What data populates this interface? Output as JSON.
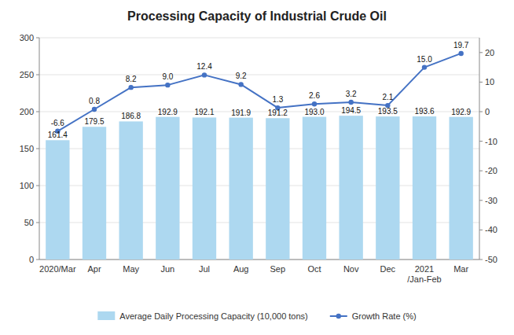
{
  "chart_data": {
    "type": "bar",
    "title": "Processing Capacity of Industrial Crude Oil",
    "categories": [
      "2020/Mar",
      "Apr",
      "May",
      "Jun",
      "Jul",
      "Aug",
      "Sep",
      "Oct",
      "Nov",
      "Dec",
      "2021\n/Jan-Feb",
      "Mar"
    ],
    "series": [
      {
        "name": "Average Daily Processing Capacity (10,000 tons)",
        "type": "bar",
        "color": "#ADD8F0",
        "values": [
          161.4,
          179.5,
          186.8,
          192.9,
          192.1,
          191.9,
          191.2,
          193.0,
          194.5,
          193.5,
          193.6,
          192.9
        ],
        "value_labels": [
          "161.4",
          "179.5",
          "186.8",
          "192.9",
          "192.1",
          "191.9",
          "191.2",
          "193.0",
          "194.5",
          "193.5",
          "193.6",
          "192.9"
        ]
      },
      {
        "name": "Growth Rate (%)",
        "type": "line",
        "color": "#4472C4",
        "axis": "y2",
        "marker": "circle",
        "values": [
          -6.6,
          0.8,
          8.2,
          9.0,
          12.4,
          9.2,
          1.3,
          2.6,
          3.2,
          2.1,
          15.0,
          19.7
        ],
        "value_labels": [
          "-6.6",
          "0.8",
          "8.2",
          "9.0",
          "12.4",
          "9.2",
          "1.3",
          "2.6",
          "3.2",
          "2.1",
          "15.0",
          "19.7"
        ]
      }
    ],
    "ylim": [
      0,
      300
    ],
    "yticks": [
      0,
      50,
      100,
      150,
      200,
      250,
      300
    ],
    "y2lim": [
      -50,
      25
    ],
    "y2ticks": [
      -50,
      -40,
      -30,
      -20,
      -10,
      0,
      10,
      20
    ],
    "grid": true,
    "legend": "bottom",
    "data_labels": true
  }
}
